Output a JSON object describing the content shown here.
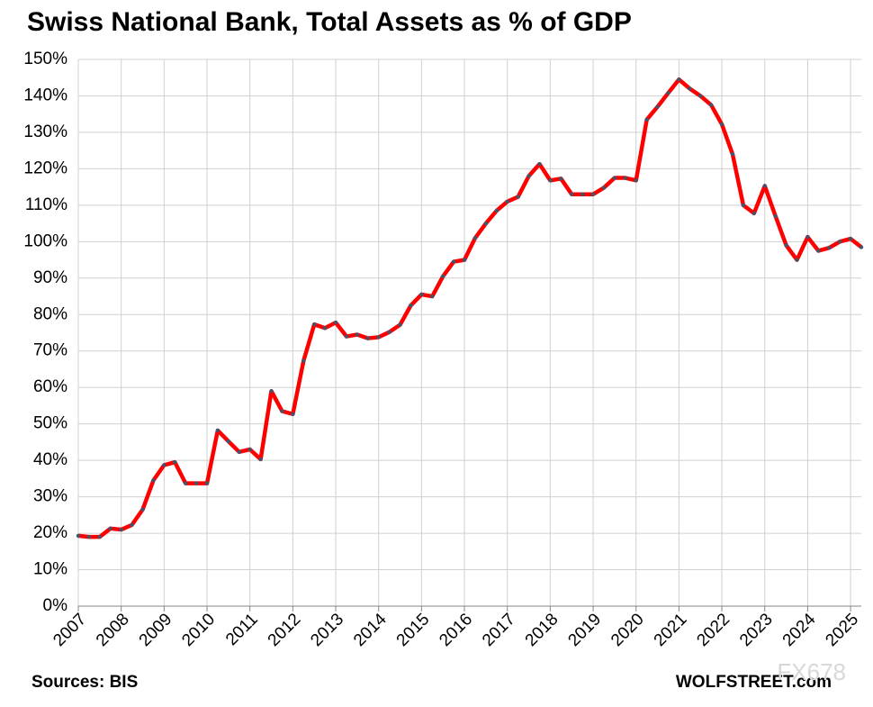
{
  "chart_data": {
    "type": "line",
    "title": "Swiss National Bank, Total Assets as % of GDP",
    "source": "Sources: BIS",
    "credit": "WOLFSTREET.com",
    "watermark": "FX678",
    "x": [
      2007,
      2007.25,
      2007.5,
      2007.75,
      2008,
      2008.25,
      2008.5,
      2008.75,
      2009,
      2009.25,
      2009.5,
      2009.75,
      2010,
      2010.25,
      2010.5,
      2010.75,
      2011,
      2011.25,
      2011.5,
      2011.75,
      2012,
      2012.25,
      2012.5,
      2012.75,
      2013,
      2013.25,
      2013.5,
      2013.75,
      2014,
      2014.25,
      2014.5,
      2014.75,
      2015,
      2015.25,
      2015.5,
      2015.75,
      2016,
      2016.25,
      2016.5,
      2016.75,
      2017,
      2017.25,
      2017.5,
      2017.75,
      2018,
      2018.25,
      2018.5,
      2018.75,
      2019,
      2019.25,
      2019.5,
      2019.75,
      2020,
      2020.25,
      2020.5,
      2020.75,
      2021,
      2021.25,
      2021.5,
      2021.75,
      2022,
      2022.25,
      2022.5,
      2022.75,
      2023,
      2023.25,
      2023.5,
      2023.75,
      2024,
      2024.25,
      2024.5,
      2024.75,
      2025,
      2025.25
    ],
    "series": [
      {
        "name": "Total Assets as % of GDP",
        "color": "#ff0000",
        "marker_color": "#44546a",
        "values": [
          19.3,
          19,
          19,
          21.3,
          21,
          22.3,
          26.5,
          34.5,
          38.7,
          39.5,
          33.7,
          33.7,
          33.7,
          48.2,
          45.2,
          42.3,
          43,
          40.3,
          59,
          53.5,
          52.7,
          67.3,
          77.3,
          76.3,
          77.8,
          74,
          74.5,
          73.5,
          73.8,
          75.2,
          77.2,
          82.5,
          85.5,
          85,
          90.5,
          94.5,
          95,
          101,
          105,
          108.5,
          111,
          112.3,
          118,
          121.3,
          116.8,
          117.3,
          113,
          113,
          113,
          114.8,
          117.5,
          117.5,
          116.8,
          133.5,
          137,
          140.8,
          144.5,
          142,
          140,
          137.5,
          132.2,
          124,
          110,
          107.8,
          115.3,
          107,
          99,
          95,
          101.3,
          97.5,
          98.3,
          100,
          100.8,
          98.5
        ]
      }
    ],
    "xlim": [
      2007,
      2025.25
    ],
    "xticks": [
      2007,
      2008,
      2009,
      2010,
      2011,
      2012,
      2013,
      2014,
      2015,
      2016,
      2017,
      2018,
      2019,
      2020,
      2021,
      2022,
      2023,
      2024,
      2025
    ],
    "ylim": [
      0,
      150
    ],
    "yticks": [
      {
        "value": 0,
        "label": "0%"
      },
      {
        "value": 10,
        "label": "10%"
      },
      {
        "value": 20,
        "label": "20%"
      },
      {
        "value": 30,
        "label": "30%"
      },
      {
        "value": 40,
        "label": "40%"
      },
      {
        "value": 50,
        "label": "50%"
      },
      {
        "value": 60,
        "label": "60%"
      },
      {
        "value": 70,
        "label": "70%"
      },
      {
        "value": 80,
        "label": "80%"
      },
      {
        "value": 90,
        "label": "90%"
      },
      {
        "value": 100,
        "label": "100%"
      },
      {
        "value": 110,
        "label": "110%"
      },
      {
        "value": 120,
        "label": "120%"
      },
      {
        "value": 130,
        "label": "130%"
      },
      {
        "value": 140,
        "label": "140%"
      },
      {
        "value": 150,
        "label": "150%"
      }
    ],
    "grid": true
  }
}
